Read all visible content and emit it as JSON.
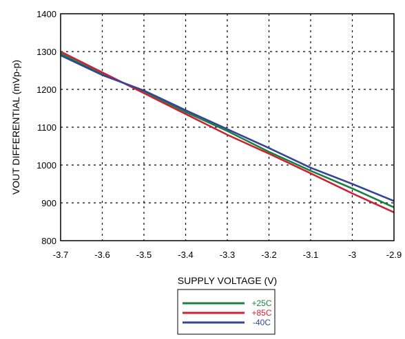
{
  "chart_data": {
    "type": "line",
    "xlabel": "SUPPLY VOLTAGE (V)",
    "ylabel": "VOUT DIFFERENTIAL (mVp-p)",
    "xlim": [
      -3.7,
      -2.9
    ],
    "ylim": [
      800,
      1400
    ],
    "x_ticks": [
      -3.7,
      -3.6,
      -3.5,
      -3.4,
      -3.3,
      -3.2,
      -3.1,
      -3.0,
      -2.9
    ],
    "x_tick_labels": [
      "-3.7",
      "-3.6",
      "-3.5",
      "-3.4",
      "-3.3",
      "-3.2",
      "-3.1",
      "-3",
      "-2.9"
    ],
    "y_ticks": [
      800,
      900,
      1000,
      1100,
      1200,
      1300,
      1400
    ],
    "y_tick_labels": [
      "800",
      "900",
      "1000",
      "1100",
      "1200",
      "1300",
      "1400"
    ],
    "grid": true,
    "legend_position": "bottom-center-outside",
    "series": [
      {
        "name": "+25C",
        "color": "#1a8040",
        "x": [
          -3.7,
          -3.6,
          -3.5,
          -3.4,
          -3.3,
          -3.2,
          -3.1,
          -3.0,
          -2.9
        ],
        "y": [
          1295,
          1240,
          1195,
          1140,
          1090,
          1035,
          985,
          938,
          888
        ]
      },
      {
        "name": "+85C",
        "color": "#cc2233",
        "x": [
          -3.7,
          -3.6,
          -3.5,
          -3.4,
          -3.3,
          -3.2,
          -3.1,
          -3.0,
          -2.9
        ],
        "y": [
          1300,
          1245,
          1190,
          1135,
          1080,
          1030,
          978,
          925,
          875
        ]
      },
      {
        "name": "-40C",
        "color": "#334499",
        "x": [
          -3.7,
          -3.6,
          -3.5,
          -3.4,
          -3.3,
          -3.2,
          -3.1,
          -3.0,
          -2.9
        ],
        "y": [
          1290,
          1238,
          1197,
          1145,
          1095,
          1045,
          993,
          950,
          905
        ]
      }
    ]
  }
}
